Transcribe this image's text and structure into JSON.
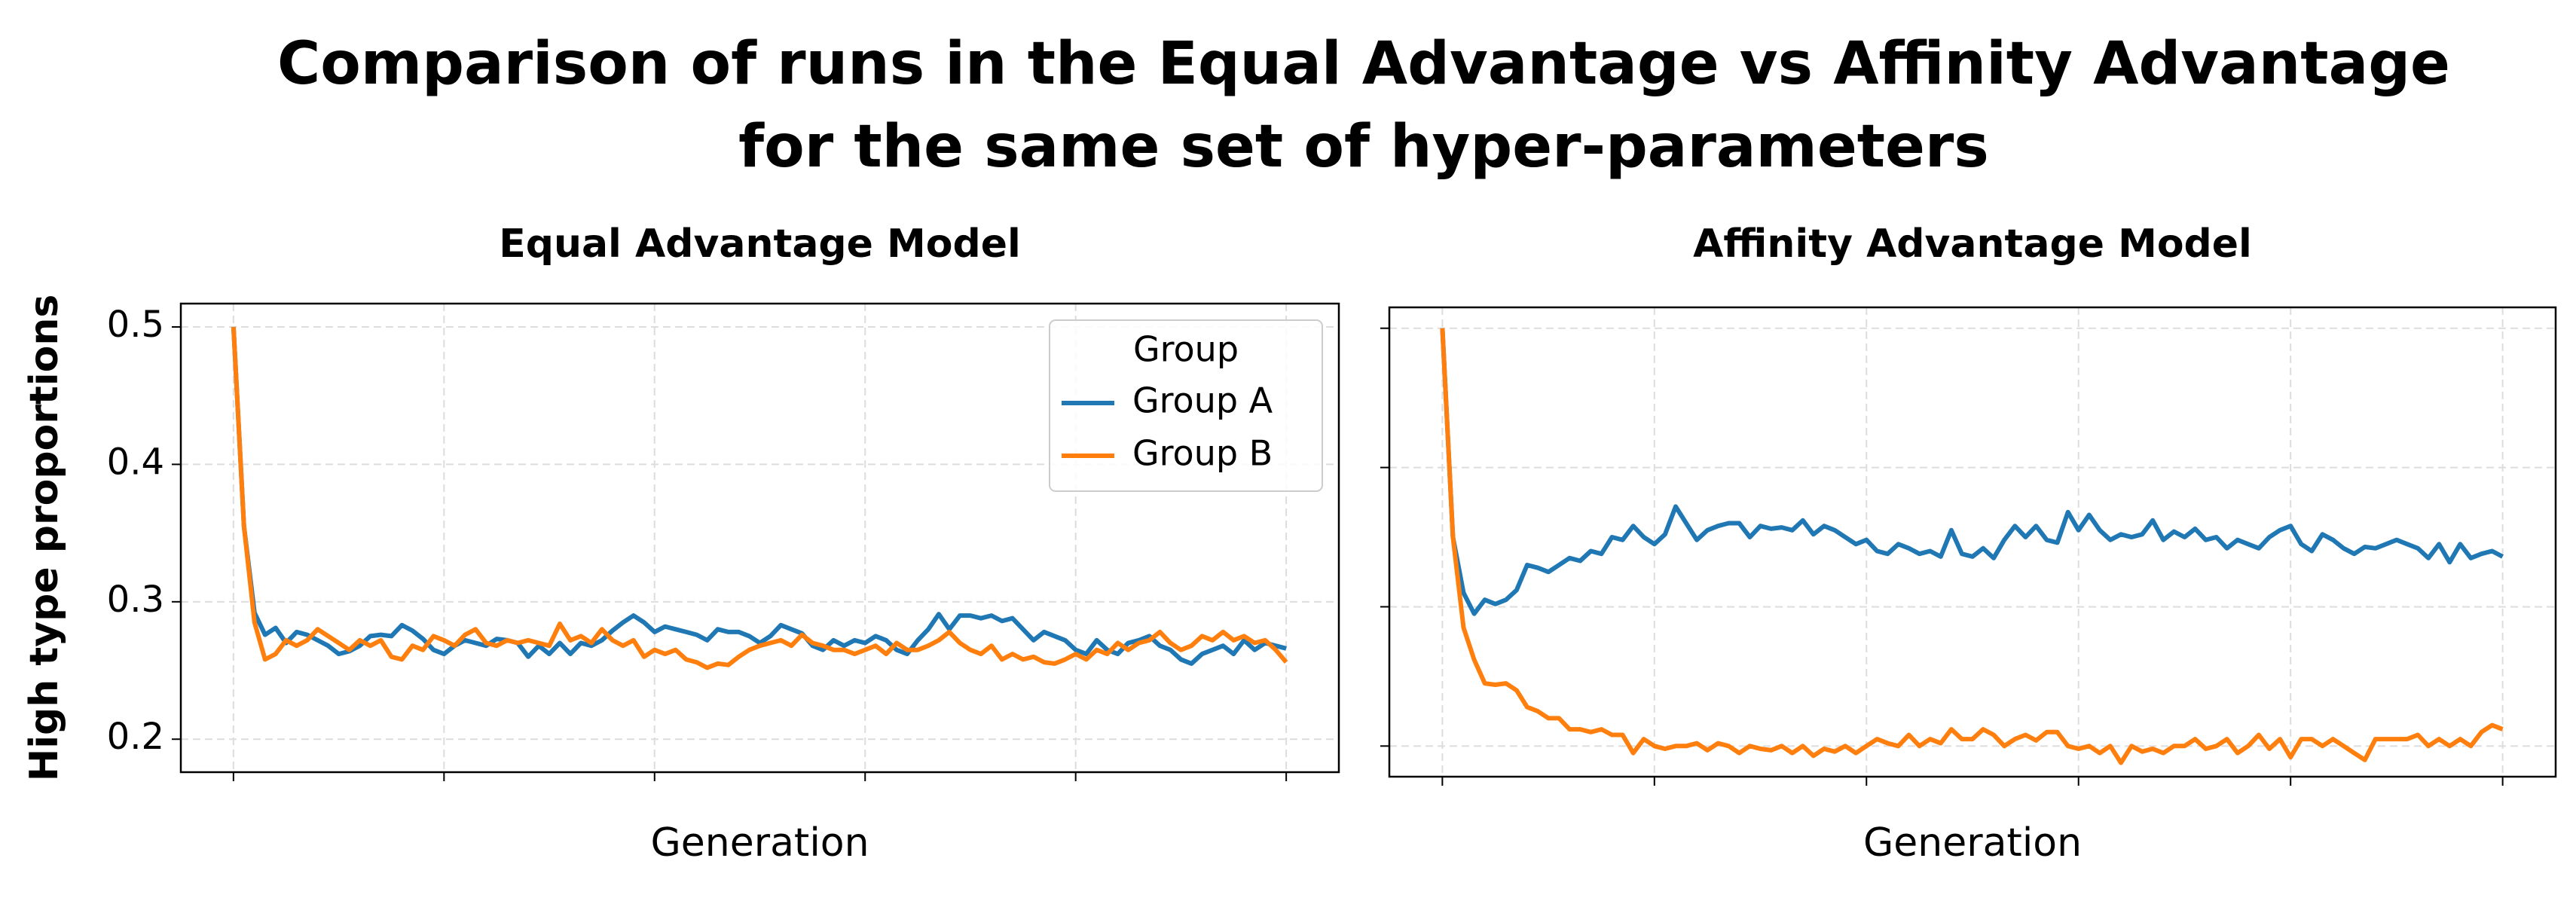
{
  "title": "Comparison of runs in the Equal Advantage vs Affinity Advantage for the same set of hyper-parameters",
  "chart_data": [
    {
      "type": "line",
      "title": "Equal Advantage Model",
      "xlabel": "Generation",
      "ylabel": "High type proportions",
      "x": [
        0,
        1,
        2,
        3,
        4,
        5,
        6,
        7,
        8,
        9,
        10,
        11,
        12,
        13,
        14,
        15,
        16,
        17,
        18,
        19,
        20,
        21,
        22,
        23,
        24,
        25,
        26,
        27,
        28,
        29,
        30,
        31,
        32,
        33,
        34,
        35,
        36,
        37,
        38,
        39,
        40,
        41,
        42,
        43,
        44,
        45,
        46,
        47,
        48,
        49,
        50,
        51,
        52,
        53,
        54,
        55,
        56,
        57,
        58,
        59,
        60,
        61,
        62,
        63,
        64,
        65,
        66,
        67,
        68,
        69,
        70,
        71,
        72,
        73,
        74,
        75,
        76,
        77,
        78,
        79,
        80,
        81,
        82,
        83,
        84,
        85,
        86,
        87,
        88,
        89,
        90,
        91,
        92,
        93,
        94,
        95,
        96,
        97,
        98,
        99,
        100
      ],
      "xlim": [
        -5,
        105
      ],
      "xticks": [
        0,
        20,
        40,
        60,
        80,
        100
      ],
      "xtick_labels": false,
      "ylim": [
        0.176,
        0.517
      ],
      "yticks": [
        0.2,
        0.3,
        0.4,
        0.5
      ],
      "ytick_labels": true,
      "grid": true,
      "legend_title": "Group",
      "legend": "upper right",
      "series": [
        {
          "name": "Group A",
          "color": "#1f77b4",
          "values": [
            0.5,
            0.355,
            0.292,
            0.276,
            0.281,
            0.27,
            0.278,
            0.276,
            0.272,
            0.268,
            0.262,
            0.264,
            0.268,
            0.275,
            0.276,
            0.275,
            0.283,
            0.279,
            0.273,
            0.265,
            0.262,
            0.268,
            0.272,
            0.27,
            0.268,
            0.273,
            0.272,
            0.27,
            0.26,
            0.268,
            0.262,
            0.27,
            0.262,
            0.27,
            0.268,
            0.272,
            0.279,
            0.285,
            0.29,
            0.285,
            0.278,
            0.282,
            0.28,
            0.278,
            0.276,
            0.272,
            0.28,
            0.278,
            0.278,
            0.275,
            0.27,
            0.275,
            0.283,
            0.28,
            0.277,
            0.268,
            0.265,
            0.272,
            0.268,
            0.272,
            0.27,
            0.275,
            0.272,
            0.265,
            0.262,
            0.272,
            0.28,
            0.291,
            0.28,
            0.29,
            0.29,
            0.288,
            0.29,
            0.286,
            0.288,
            0.28,
            0.272,
            0.278,
            0.275,
            0.272,
            0.265,
            0.262,
            0.272,
            0.265,
            0.262,
            0.27,
            0.272,
            0.275,
            0.268,
            0.265,
            0.258,
            0.255,
            0.262,
            0.265,
            0.268,
            0.262,
            0.272,
            0.265,
            0.27,
            0.268,
            0.266
          ]
        },
        {
          "name": "Group B",
          "color": "#ff7f0e",
          "values": [
            0.5,
            0.355,
            0.285,
            0.258,
            0.262,
            0.272,
            0.268,
            0.272,
            0.28,
            0.275,
            0.27,
            0.265,
            0.272,
            0.268,
            0.272,
            0.26,
            0.258,
            0.268,
            0.265,
            0.275,
            0.272,
            0.268,
            0.276,
            0.28,
            0.27,
            0.268,
            0.272,
            0.27,
            0.272,
            0.27,
            0.268,
            0.284,
            0.272,
            0.275,
            0.27,
            0.28,
            0.272,
            0.268,
            0.272,
            0.26,
            0.265,
            0.262,
            0.265,
            0.258,
            0.256,
            0.252,
            0.255,
            0.254,
            0.26,
            0.265,
            0.268,
            0.27,
            0.272,
            0.268,
            0.276,
            0.27,
            0.268,
            0.265,
            0.265,
            0.262,
            0.265,
            0.268,
            0.262,
            0.27,
            0.265,
            0.265,
            0.268,
            0.272,
            0.278,
            0.27,
            0.265,
            0.262,
            0.268,
            0.258,
            0.262,
            0.258,
            0.26,
            0.256,
            0.255,
            0.258,
            0.262,
            0.258,
            0.265,
            0.262,
            0.27,
            0.265,
            0.27,
            0.272,
            0.278,
            0.27,
            0.265,
            0.268,
            0.275,
            0.272,
            0.278,
            0.272,
            0.275,
            0.27,
            0.272,
            0.265,
            0.256
          ]
        }
      ]
    },
    {
      "type": "line",
      "title": "Affinity Advantage Model",
      "xlabel": "Generation",
      "x": [
        0,
        1,
        2,
        3,
        4,
        5,
        6,
        7,
        8,
        9,
        10,
        11,
        12,
        13,
        14,
        15,
        16,
        17,
        18,
        19,
        20,
        21,
        22,
        23,
        24,
        25,
        26,
        27,
        28,
        29,
        30,
        31,
        32,
        33,
        34,
        35,
        36,
        37,
        38,
        39,
        40,
        41,
        42,
        43,
        44,
        45,
        46,
        47,
        48,
        49,
        50,
        51,
        52,
        53,
        54,
        55,
        56,
        57,
        58,
        59,
        60,
        61,
        62,
        63,
        64,
        65,
        66,
        67,
        68,
        69,
        70,
        71,
        72,
        73,
        74,
        75,
        76,
        77,
        78,
        79,
        80,
        81,
        82,
        83,
        84,
        85,
        86,
        87,
        88,
        89,
        90,
        91,
        92,
        93,
        94,
        95,
        96,
        97,
        98,
        99,
        100
      ],
      "xlim": [
        -5,
        105
      ],
      "xticks": [
        0,
        20,
        40,
        60,
        80,
        100
      ],
      "xtick_labels": false,
      "ylim": [
        0.178,
        0.515
      ],
      "yticks": [
        0.2,
        0.3,
        0.4,
        0.5
      ],
      "ytick_labels": false,
      "grid": true,
      "series": [
        {
          "name": "Group A",
          "color": "#1f77b4",
          "values": [
            0.5,
            0.35,
            0.31,
            0.295,
            0.305,
            0.302,
            0.305,
            0.312,
            0.33,
            0.328,
            0.325,
            0.33,
            0.335,
            0.333,
            0.34,
            0.338,
            0.35,
            0.348,
            0.358,
            0.35,
            0.345,
            0.352,
            0.372,
            0.36,
            0.348,
            0.355,
            0.358,
            0.36,
            0.36,
            0.35,
            0.358,
            0.356,
            0.357,
            0.355,
            0.362,
            0.352,
            0.358,
            0.355,
            0.35,
            0.345,
            0.348,
            0.34,
            0.338,
            0.345,
            0.342,
            0.338,
            0.34,
            0.336,
            0.355,
            0.338,
            0.336,
            0.342,
            0.335,
            0.348,
            0.358,
            0.35,
            0.358,
            0.348,
            0.346,
            0.368,
            0.355,
            0.366,
            0.355,
            0.348,
            0.352,
            0.35,
            0.352,
            0.362,
            0.348,
            0.354,
            0.35,
            0.356,
            0.348,
            0.35,
            0.342,
            0.348,
            0.345,
            0.342,
            0.35,
            0.355,
            0.358,
            0.345,
            0.34,
            0.352,
            0.348,
            0.342,
            0.338,
            0.343,
            0.342,
            0.345,
            0.348,
            0.345,
            0.342,
            0.335,
            0.345,
            0.332,
            0.345,
            0.335,
            0.338,
            0.34,
            0.336
          ]
        },
        {
          "name": "Group B",
          "color": "#ff7f0e",
          "values": [
            0.5,
            0.35,
            0.285,
            0.262,
            0.245,
            0.244,
            0.245,
            0.24,
            0.228,
            0.225,
            0.22,
            0.22,
            0.212,
            0.212,
            0.21,
            0.212,
            0.208,
            0.208,
            0.195,
            0.205,
            0.2,
            0.198,
            0.2,
            0.2,
            0.202,
            0.197,
            0.202,
            0.2,
            0.195,
            0.2,
            0.198,
            0.197,
            0.2,
            0.195,
            0.2,
            0.193,
            0.198,
            0.196,
            0.2,
            0.195,
            0.2,
            0.205,
            0.202,
            0.2,
            0.208,
            0.2,
            0.205,
            0.202,
            0.212,
            0.205,
            0.205,
            0.212,
            0.208,
            0.2,
            0.205,
            0.208,
            0.204,
            0.21,
            0.21,
            0.2,
            0.198,
            0.2,
            0.195,
            0.2,
            0.188,
            0.2,
            0.196,
            0.198,
            0.195,
            0.2,
            0.2,
            0.205,
            0.198,
            0.2,
            0.205,
            0.195,
            0.2,
            0.208,
            0.198,
            0.205,
            0.192,
            0.205,
            0.205,
            0.2,
            0.205,
            0.2,
            0.195,
            0.19,
            0.205,
            0.205,
            0.205,
            0.205,
            0.208,
            0.2,
            0.205,
            0.2,
            0.205,
            0.2,
            0.21,
            0.215,
            0.212
          ]
        }
      ]
    }
  ]
}
